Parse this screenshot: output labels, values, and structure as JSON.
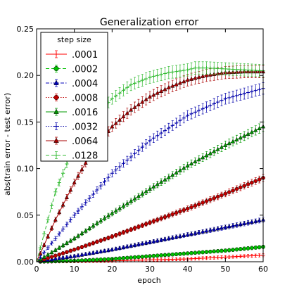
{
  "chart_data": {
    "type": "line",
    "title": "Generalization error",
    "xlabel": "epoch",
    "ylabel": "abs(train error - test error)",
    "xlim": [
      0,
      60
    ],
    "ylim": [
      0,
      0.25
    ],
    "x_ticks": [
      0,
      10,
      20,
      30,
      40,
      50,
      60
    ],
    "x_tick_labels": [
      "0",
      "10",
      "20",
      "30",
      "40",
      "50",
      "60"
    ],
    "y_ticks": [
      0,
      0.05,
      0.1,
      0.15,
      0.2,
      0.25
    ],
    "y_tick_labels": [
      "0.00",
      "0.05",
      "0.10",
      "0.15",
      "0.20",
      "0.25"
    ],
    "grid": false,
    "legend": {
      "title": "step size",
      "placement": "upper-left"
    },
    "series": [
      {
        "name": ".0001",
        "color": "#ff0000",
        "linestyle": "solid",
        "marker": "plus",
        "x": [
          0,
          10,
          20,
          30,
          40,
          50,
          60
        ],
        "y": [
          0.0,
          0.0005,
          0.001,
          0.002,
          0.003,
          0.005,
          0.007
        ]
      },
      {
        "name": ".0002",
        "color": "#00c000",
        "linestyle": "dashed",
        "marker": "circle",
        "x": [
          0,
          10,
          20,
          30,
          40,
          50,
          60
        ],
        "y": [
          0.0,
          0.001,
          0.003,
          0.006,
          0.009,
          0.012,
          0.016
        ]
      },
      {
        "name": ".0004",
        "color": "#0000bb",
        "linestyle": "dashdot",
        "marker": "triangle",
        "x": [
          0,
          10,
          20,
          30,
          40,
          50,
          60
        ],
        "y": [
          0.0,
          0.006,
          0.013,
          0.021,
          0.029,
          0.037,
          0.045
        ]
      },
      {
        "name": ".0008",
        "color": "#c00000",
        "linestyle": "dotted",
        "marker": "circle",
        "x": [
          0,
          10,
          20,
          30,
          40,
          50,
          60
        ],
        "y": [
          0.0,
          0.013,
          0.027,
          0.042,
          0.057,
          0.073,
          0.09
        ]
      },
      {
        "name": ".0016",
        "color": "#009900",
        "linestyle": "solid",
        "marker": "triangle",
        "x": [
          0,
          10,
          20,
          30,
          40,
          50,
          60
        ],
        "y": [
          0.0,
          0.025,
          0.052,
          0.078,
          0.103,
          0.125,
          0.145
        ]
      },
      {
        "name": ".0032",
        "color": "#0000aa",
        "linestyle": "dotted",
        "marker": "plus",
        "x": [
          0,
          10,
          20,
          30,
          40,
          50,
          60
        ],
        "y": [
          0.0,
          0.05,
          0.095,
          0.13,
          0.157,
          0.175,
          0.186
        ]
      },
      {
        "name": ".0064",
        "color": "#aa0000",
        "linestyle": "solid",
        "marker": "triangle",
        "x": [
          0,
          5,
          10,
          15,
          20,
          25,
          30,
          35,
          40,
          45,
          50,
          55,
          60
        ],
        "y": [
          0.0,
          0.045,
          0.085,
          0.12,
          0.145,
          0.163,
          0.177,
          0.187,
          0.195,
          0.2,
          0.203,
          0.204,
          0.204
        ]
      },
      {
        "name": ".0128",
        "color": "#33bb33",
        "linestyle": "dashed",
        "marker": "plus",
        "x": [
          0,
          5,
          10,
          15,
          20,
          25,
          30,
          35,
          40,
          42,
          45,
          50,
          55,
          60
        ],
        "y": [
          0.0,
          0.075,
          0.125,
          0.155,
          0.175,
          0.19,
          0.198,
          0.203,
          0.206,
          0.208,
          0.208,
          0.207,
          0.206,
          0.205
        ]
      }
    ]
  }
}
